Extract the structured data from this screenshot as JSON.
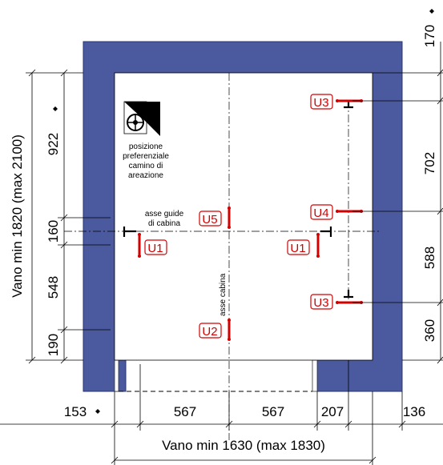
{
  "colors": {
    "wall": "#4b5a9e",
    "wall_stroke": "#2a3470",
    "marker": "#d40000",
    "line": "#000000"
  },
  "icons": {
    "fan": "ventilation-fan-icon",
    "diamond": "diamond-marker-icon"
  },
  "labels": {
    "shaft_width": "Vano min 1630 (max 1830)",
    "shaft_depth": "Vano min 1820 (max 2100)",
    "guide_axis": [
      "asse guide",
      "di cabina"
    ],
    "cabin_axis": "asse cabina",
    "vent_note": [
      "posizione",
      "preferenziale",
      "camino di",
      "areazione"
    ]
  },
  "bottom_dims": {
    "d153": "153",
    "d567a": "567",
    "d567b": "567",
    "d207": "207",
    "d136": "136"
  },
  "left_dims": {
    "d922": "922",
    "d160": "160",
    "d548": "548",
    "d190": "190"
  },
  "right_dims": {
    "d170": "170",
    "d702": "702",
    "d588": "588",
    "d360": "360"
  },
  "markers": {
    "u1_left": "U1",
    "u1_right": "U1",
    "u2": "U2",
    "u3_top": "U3",
    "u3_bottom": "U3",
    "u4": "U4",
    "u5": "U5"
  }
}
